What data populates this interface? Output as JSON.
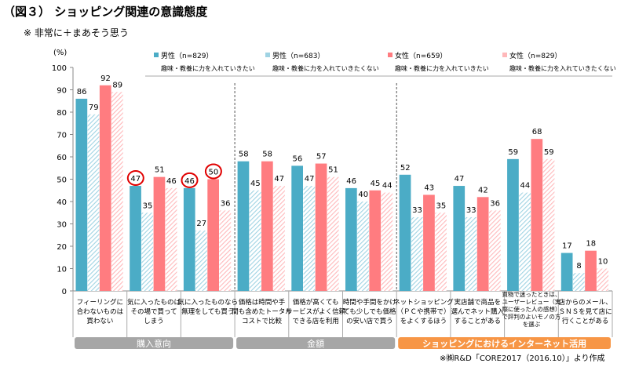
{
  "title": "（図３） ショッピング関連の意識態度",
  "subtitle": "※  非常に＋まあそう思う",
  "source": "※㈱R&D「CORE2017（2016.10）」より作成",
  "colors": {
    "male": "#4BACC6",
    "female": "#FF7C80",
    "male_hatch": "#9FD3E3",
    "female_hatch": "#FFB8BA",
    "group_gray": "#A6A6A6",
    "group_orange": "#F79646",
    "highlight": "#E00000"
  },
  "chart_data": {
    "type": "bar",
    "ylabel": "(%)",
    "ylim": [
      0,
      100
    ],
    "yticks": [
      0,
      10,
      20,
      30,
      40,
      50,
      60,
      70,
      80,
      90,
      100
    ],
    "grid": false,
    "legend_position": "top",
    "categories": [
      "フィーリングに\n合わないものは\n買わない",
      "気に入ったものは\nその場で買って\nしまう",
      "気に入ったものなら\n無理をしても買う",
      "価格は時間や手\n間も含めたトータル\nコストで比較",
      "価格が高くても\nサービスがよく信頼\nできる店を利用",
      "時間や手間をかけ\nても少しでも価格\nの安い店で買う",
      "ネットショッピング\n（ＰＣや携帯で）\nをよくするほう",
      "実店舗で商品を\n選んでネット購入\nすることがある",
      "買物で迷ったときは、\nユーザーレビュー（実\n際に使った人の感想）\nで評判のよいモノの方\nを選ぶ",
      "店からのメール、\nＳＮＳを見て店に\n行くことがある"
    ],
    "series": [
      {
        "name": "男性（n=829）",
        "note": "趣味・教養に力を入れていきたい",
        "values": [
          86,
          47,
          46,
          58,
          56,
          46,
          52,
          47,
          59,
          17
        ]
      },
      {
        "name": "男性（n=683）",
        "note": "趣味・教養に力を入れていきたくない",
        "values": [
          79,
          35,
          27,
          45,
          47,
          40,
          33,
          33,
          44,
          8
        ]
      },
      {
        "name": "女性（n=659）",
        "note": "趣味・教養に力を入れていきたい",
        "values": [
          92,
          51,
          50,
          58,
          57,
          45,
          43,
          42,
          68,
          18
        ]
      },
      {
        "name": "女性（n=829）",
        "note": "趣味・教養に力を入れていきたくない",
        "values": [
          89,
          46,
          36,
          47,
          51,
          44,
          35,
          36,
          59,
          10
        ]
      }
    ],
    "groups": [
      {
        "label": "購入意向",
        "from": 0,
        "to": 2,
        "color": "gray"
      },
      {
        "label": "金額",
        "from": 3,
        "to": 5,
        "color": "gray"
      },
      {
        "label": "ショッピングにおけるインターネット活用",
        "from": 6,
        "to": 9,
        "color": "orange"
      }
    ],
    "highlighted": [
      {
        "category": 1,
        "series": 0
      },
      {
        "category": 2,
        "series": 0
      },
      {
        "category": 2,
        "series": 2
      }
    ]
  }
}
